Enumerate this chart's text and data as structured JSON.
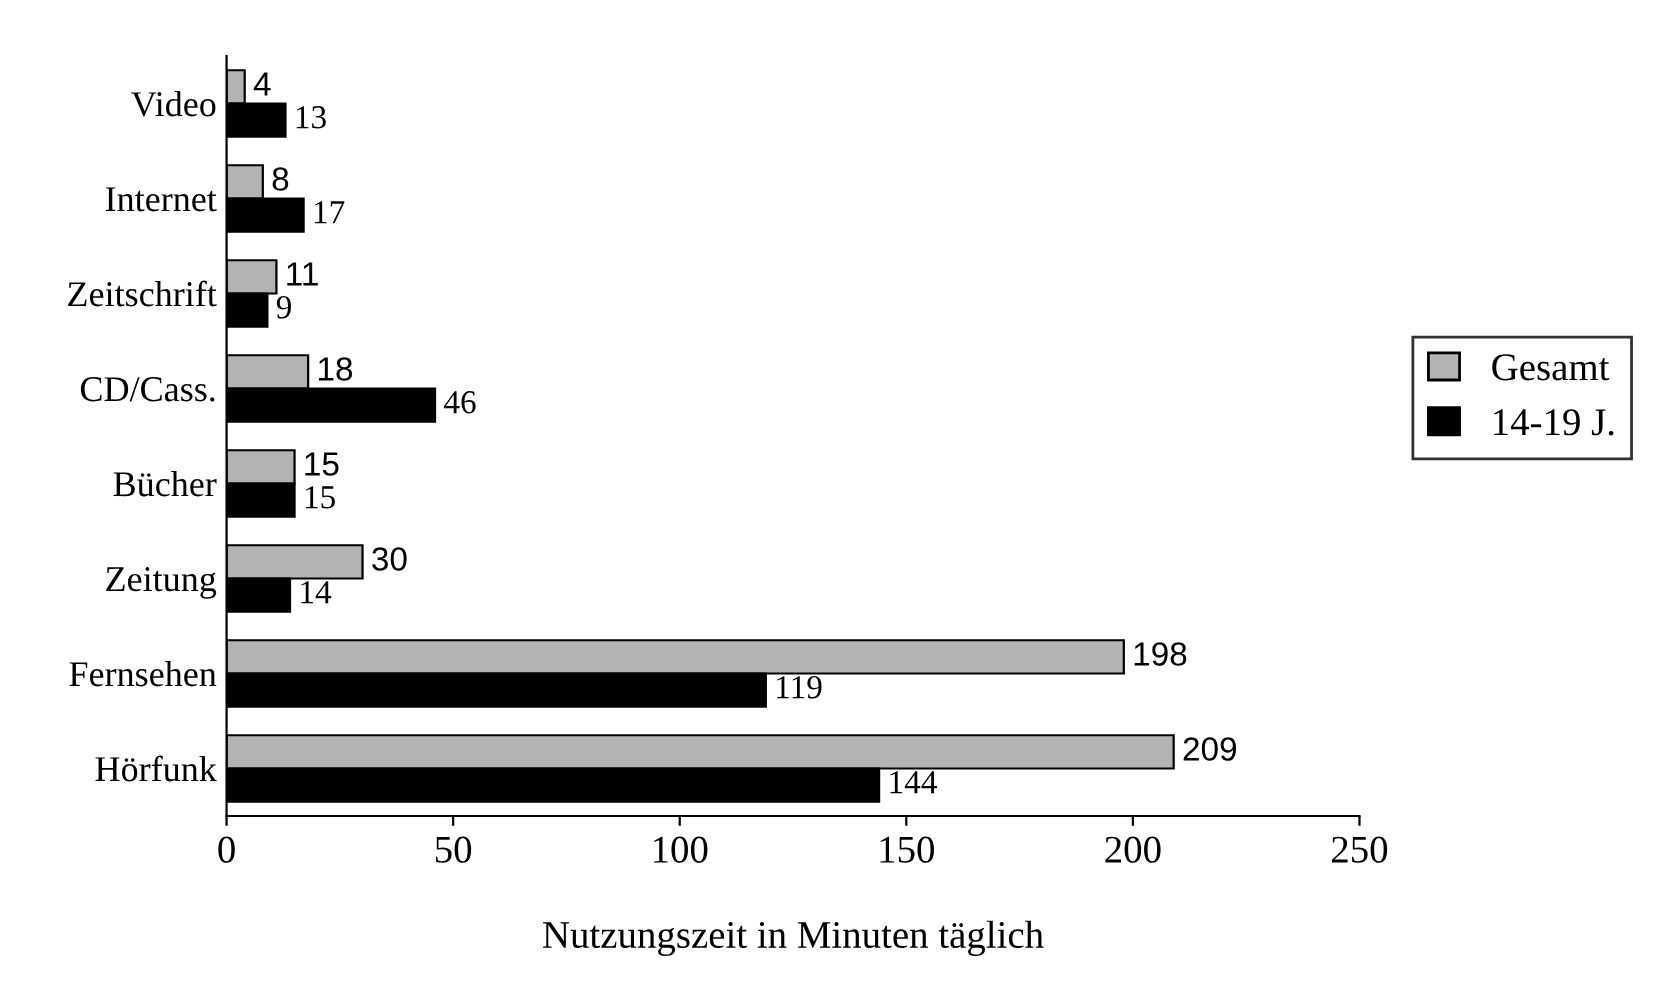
{
  "chart_data": {
    "type": "bar",
    "orientation": "horizontal",
    "xlabel": "Nutzungszeit in Minuten täglich",
    "categories": [
      "Video",
      "Internet",
      "Zeitschrift",
      "CD/Cass.",
      "Bücher",
      "Zeitung",
      "Fernsehen",
      "Hörfunk"
    ],
    "series": [
      {
        "name": "Gesamt",
        "color": "#b3b3b3",
        "values": [
          4,
          8,
          11,
          18,
          15,
          30,
          198,
          209
        ]
      },
      {
        "name": "14-19 J.",
        "color": "#000000",
        "values": [
          13,
          17,
          9,
          46,
          15,
          14,
          119,
          144
        ]
      }
    ],
    "xlim": [
      0,
      250
    ],
    "xticks": [
      0,
      50,
      100,
      150,
      200,
      250
    ],
    "data_labels": true,
    "legend": "right",
    "grid": false
  }
}
